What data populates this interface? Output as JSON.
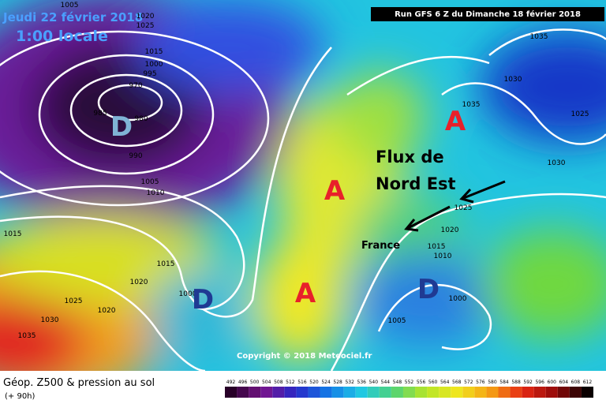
{
  "header": {
    "date": "Jeudi 22 février 2018",
    "time": "1:00 locale",
    "run": "Run GFS 6 Z du Dimanche 18 février 2018"
  },
  "annotations": {
    "flux_line1": "Flux de",
    "flux_line2": "Nord Est",
    "country": "France",
    "copyright": "Copyright © 2018 Meteociel.fr"
  },
  "pressure_centers": [
    {
      "label": "D",
      "color": "#7fb3d5"
    },
    {
      "label": "A",
      "color": "#e8202a"
    },
    {
      "label": "A",
      "color": "#e8202a"
    },
    {
      "label": "A",
      "color": "#e8202a"
    },
    {
      "label": "D",
      "color": "#1f3a93"
    },
    {
      "label": "D",
      "color": "#1f3a93"
    }
  ],
  "isobar_labels": [
    1005,
    1020,
    1025,
    1015,
    1000,
    995,
    970,
    985,
    980,
    990,
    1005,
    1010,
    1015,
    1015,
    1020,
    1025,
    1020,
    1030,
    1035,
    1035,
    1030,
    1035,
    1025,
    1030,
    1025,
    1020,
    1015,
    1010,
    1000,
    1005,
    1000
  ],
  "legend": {
    "title": "Géop. Z500 & pression au sol",
    "lead": "(+ 90h)",
    "scale": [
      492,
      496,
      500,
      504,
      508,
      512,
      516,
      520,
      524,
      528,
      532,
      536,
      540,
      544,
      548,
      552,
      556,
      560,
      564,
      568,
      572,
      576,
      580,
      584,
      588,
      592,
      596,
      600,
      604,
      608,
      612
    ]
  }
}
